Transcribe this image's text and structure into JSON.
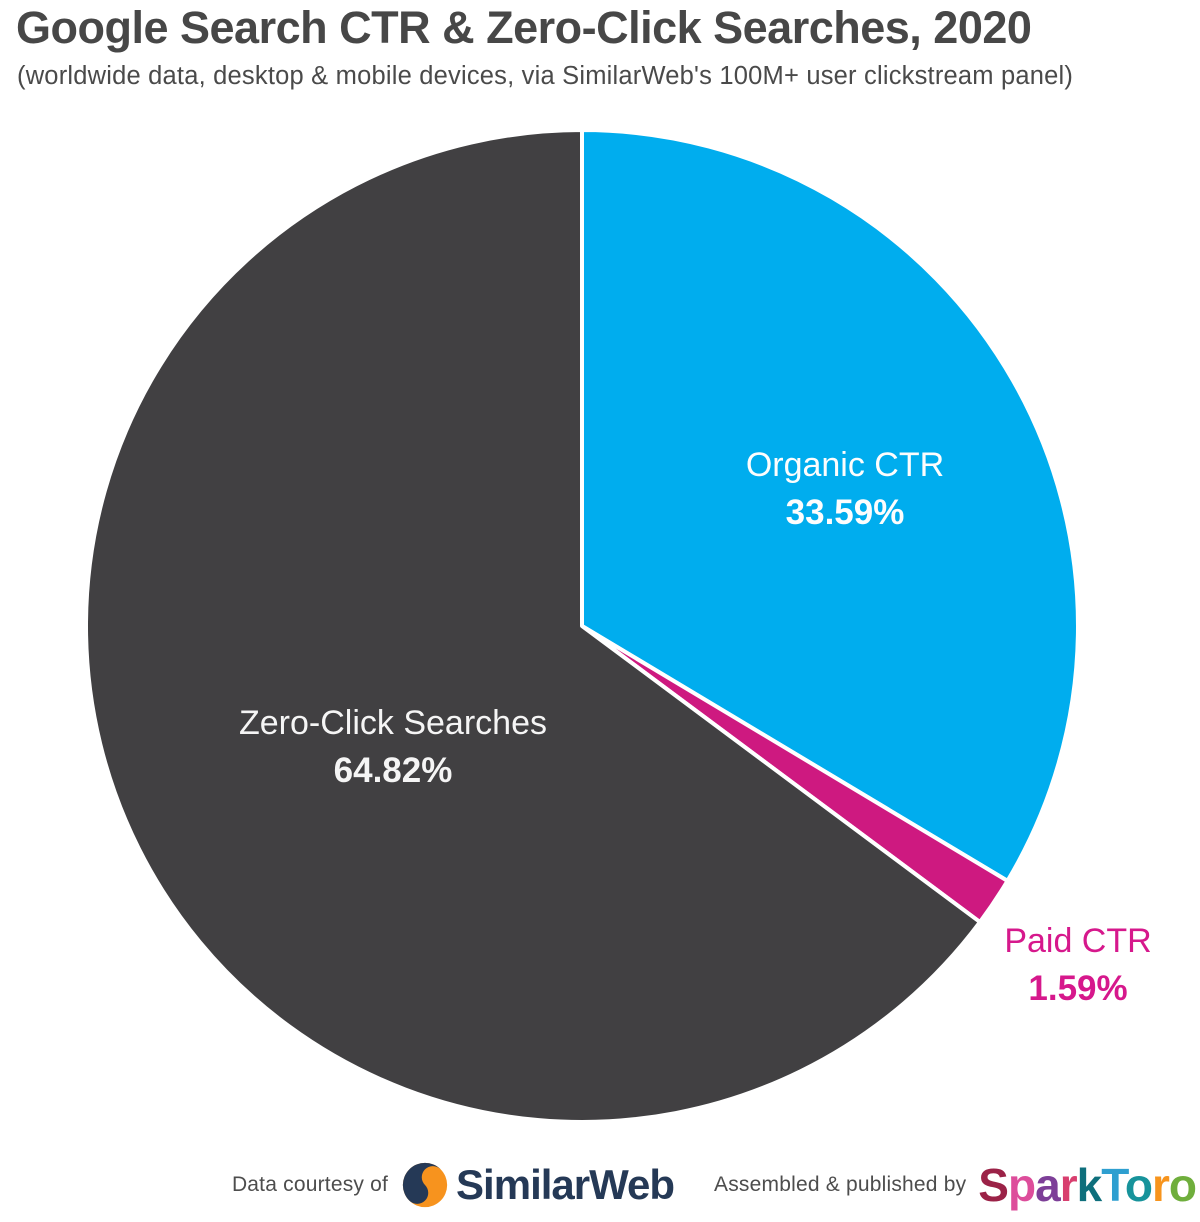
{
  "chart_data": {
    "type": "pie",
    "title": "Google Search CTR & Zero-Click Searches, 2020",
    "subtitle": "(worldwide data, desktop & mobile devices, via SimilarWeb's 100M+ user clickstream panel)",
    "legend_position": "none",
    "start_angle_deg": -90,
    "direction": "clockwise",
    "slices": [
      {
        "label": "Organic CTR",
        "value": 33.59,
        "display": "33.59%",
        "color": "#00ADEE",
        "label_color": "#FDFDFD"
      },
      {
        "label": "Paid CTR",
        "value": 1.59,
        "display": "1.59%",
        "color": "#CE1980",
        "label_color": "#D6188C"
      },
      {
        "label": "Zero-Click Searches",
        "value": 64.82,
        "display": "64.82%",
        "color": "#414042",
        "label_color": "#F5F5F5"
      }
    ]
  },
  "footer": {
    "courtesy_text": "Data courtesy of",
    "similarweb_name": "SimilarWeb",
    "similarweb_navy": "#253956",
    "similarweb_orange": "#F7931E",
    "published_text": "Assembled & published by",
    "sparktoro_letters": [
      {
        "ch": "S",
        "color": "#9B2247"
      },
      {
        "ch": "p",
        "color": "#DD4D9B"
      },
      {
        "ch": "a",
        "color": "#7D3F98"
      },
      {
        "ch": "r",
        "color": "#D83F6F"
      },
      {
        "ch": "k",
        "color": "#0E6F7C"
      },
      {
        "ch": "T",
        "color": "#2E9FD0"
      },
      {
        "ch": "o",
        "color": "#17939B"
      },
      {
        "ch": "r",
        "color": "#F7941D"
      },
      {
        "ch": "o",
        "color": "#6FAE3C"
      }
    ]
  }
}
